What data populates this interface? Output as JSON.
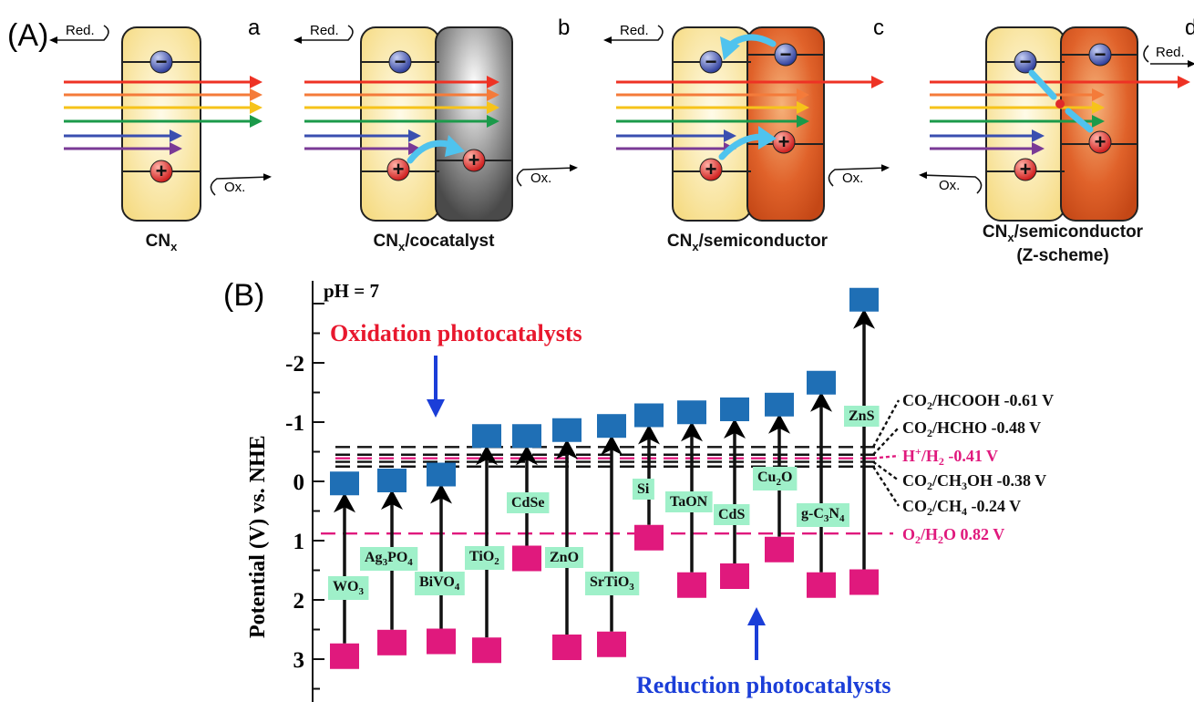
{
  "panelA": {
    "label": "(A)",
    "red_label": "Red.",
    "ox_label": "Ox.",
    "minus": "−",
    "plus": "+",
    "subpanels": [
      {
        "letter": "a",
        "caption_main": "CN",
        "caption_sub": "x",
        "caption_rest": "",
        "caption_line2": ""
      },
      {
        "letter": "b",
        "caption_main": "CN",
        "caption_sub": "x",
        "caption_rest": "/cocatalyst",
        "caption_line2": ""
      },
      {
        "letter": "c",
        "caption_main": "CN",
        "caption_sub": "x",
        "caption_rest": "/semiconductor",
        "caption_line2": ""
      },
      {
        "letter": "d",
        "caption_main": "CN",
        "caption_sub": "x",
        "caption_rest": "/semiconductor",
        "caption_line2": "(Z-scheme)"
      }
    ],
    "colors": {
      "cn_box": "#fbe9a3",
      "semiconductor": "#e25a25",
      "cocatalyst": "#666666",
      "electron": "#3d4fae",
      "hole": "#e02a2a",
      "transfer_arrow": "#4fc3ee",
      "rays": [
        "#ee3224",
        "#f47b3a",
        "#f6c31a",
        "#1b9a4a",
        "#3a4fb0",
        "#7a3a96"
      ]
    }
  },
  "panelB": {
    "label": "(B)",
    "ph_label": "pH = 7",
    "y_axis_label": "Potential (V)  vs. NHE",
    "y_ticks": [
      "-2",
      "-1",
      "0",
      "1",
      "2",
      "3"
    ],
    "oxidation_title": "Oxidation photocatalysts",
    "reduction_title": "Reduction photocatalysts",
    "colors": {
      "cb": "#1f6fb5",
      "vb": "#e0197d",
      "label_bg": "#9ff0c9",
      "oxidation_title": "#e8182e",
      "reduction_title": "#1b3ed8",
      "red_line": "#e0197d"
    },
    "materials": [
      {
        "name": "WO",
        "sub": "3",
        "tail": "",
        "cb": 0.05,
        "vb": 2.95
      },
      {
        "name": "Ag",
        "sub": "3",
        "tail": "PO",
        "sub2": "4",
        "cb": 0.0,
        "vb": 2.72
      },
      {
        "name": "BiVO",
        "sub": "4",
        "tail": "",
        "cb": -0.1,
        "vb": 2.7
      },
      {
        "name": "TiO",
        "sub": "2",
        "tail": "",
        "cb": -0.75,
        "vb": 2.85
      },
      {
        "name": "CdSe",
        "sub": "",
        "tail": "",
        "cb": -0.75,
        "vb": 1.3
      },
      {
        "name": "ZnO",
        "sub": "",
        "tail": "",
        "cb": -0.85,
        "vb": 2.8
      },
      {
        "name": "SrTiO",
        "sub": "3",
        "tail": "",
        "cb": -0.92,
        "vb": 2.75
      },
      {
        "name": "Si",
        "sub": "",
        "tail": "",
        "cb": -1.1,
        "vb": 0.95
      },
      {
        "name": "TaON",
        "sub": "",
        "tail": "",
        "cb": -1.15,
        "vb": 1.75
      },
      {
        "name": "CdS",
        "sub": "",
        "tail": "",
        "cb": -1.2,
        "vb": 1.6
      },
      {
        "name": "Cu",
        "sub": "2",
        "tail": "O",
        "cb": -1.28,
        "vb": 1.15
      },
      {
        "name": "g-C",
        "sub": "3",
        "tail": "N",
        "sub2": "4",
        "cb": -1.65,
        "vb": 1.75
      },
      {
        "name": "ZnS",
        "sub": "",
        "tail": "",
        "cb": -3.05,
        "vb": 1.7
      }
    ],
    "redox_labels": [
      {
        "pre": "CO",
        "sub": "2",
        "post": "/HCOOH -0.61 V",
        "color": "#111111"
      },
      {
        "pre": "CO",
        "sub": "2",
        "post": "/HCHO -0.48 V",
        "color": "#111111"
      },
      {
        "pre": "H",
        "sup": "+",
        "mid": "/H",
        "sub": "2",
        "post": " -0.41 V",
        "color": "#e0197d"
      },
      {
        "pre": "CO",
        "sub": "2",
        "post": "/CH",
        "sub2": "3",
        "post2": "OH -0.38 V",
        "color": "#111111"
      },
      {
        "pre": "CO",
        "sub": "2",
        "post": "/CH",
        "sub2": "4",
        "post2": " -0.24 V",
        "color": "#111111"
      },
      {
        "pre": "O",
        "sub": "2",
        "post": "/H",
        "sub2": "2",
        "post2": "O 0.82 V",
        "color": "#e0197d"
      }
    ]
  }
}
